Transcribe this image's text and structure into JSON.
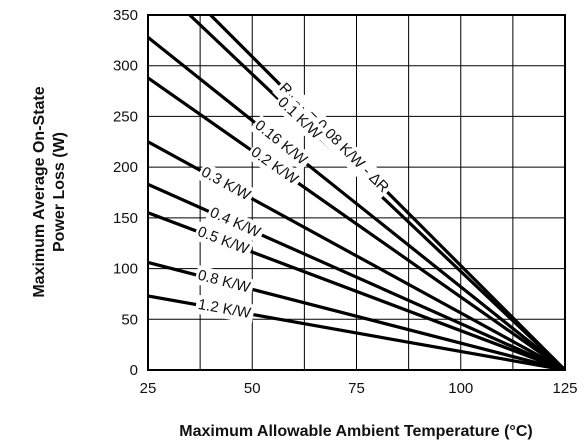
{
  "chart_data": {
    "type": "line",
    "xlabel": "Maximum Allowable Ambient Temperature (°C)",
    "ylabel_line1": "Maximum Average On-State",
    "ylabel_line2": "Power Loss (W)",
    "xlim": [
      25,
      125
    ],
    "ylim": [
      0,
      350
    ],
    "x_ticks": [
      25,
      50,
      75,
      100,
      125
    ],
    "y_ticks": [
      0,
      50,
      100,
      150,
      200,
      250,
      300,
      350
    ],
    "grid": true,
    "series": [
      {
        "name": "0.08 K/W - ΔR",
        "label_main": "R",
        "label_sub": "thSA",
        "label_tail": " = 0.08 K/W - ΔR",
        "x": [
          40,
          125
        ],
        "y": [
          350,
          0
        ]
      },
      {
        "name": "0.1 K/W",
        "x": [
          35,
          125
        ],
        "y": [
          350,
          0
        ]
      },
      {
        "name": "0.16 K/W",
        "x": [
          25,
          125
        ],
        "y": [
          328,
          0
        ]
      },
      {
        "name": "0.2 K/W",
        "x": [
          25,
          125
        ],
        "y": [
          288,
          0
        ]
      },
      {
        "name": "0.3 K/W",
        "x": [
          25,
          125
        ],
        "y": [
          225,
          0
        ]
      },
      {
        "name": "0.4 K/W",
        "x": [
          25,
          125
        ],
        "y": [
          183,
          0
        ]
      },
      {
        "name": "0.5 K/W",
        "x": [
          25,
          125
        ],
        "y": [
          155,
          0
        ]
      },
      {
        "name": "0.8 K/W",
        "x": [
          25,
          125
        ],
        "y": [
          106,
          0
        ]
      },
      {
        "name": "1.2 K/W",
        "x": [
          25,
          125
        ],
        "y": [
          73,
          0
        ]
      }
    ]
  }
}
